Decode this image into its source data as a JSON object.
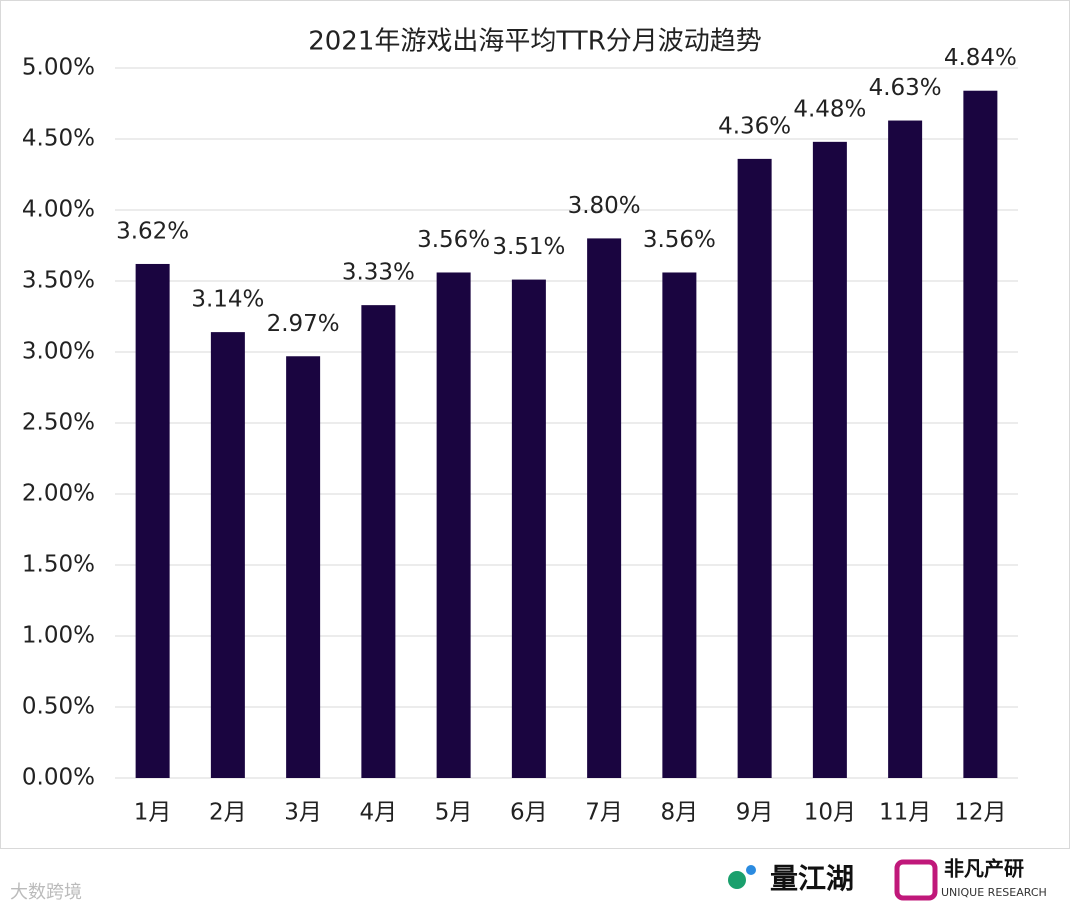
{
  "chart_data": {
    "type": "bar",
    "title": "2021年游戏出海平均TTR分月波动趋势",
    "categories": [
      "1月",
      "2月",
      "3月",
      "4月",
      "5月",
      "6月",
      "7月",
      "8月",
      "9月",
      "10月",
      "11月",
      "12月"
    ],
    "values": [
      3.62,
      3.14,
      2.97,
      3.33,
      3.56,
      3.51,
      3.8,
      3.56,
      4.36,
      4.48,
      4.63,
      4.84
    ],
    "value_labels": [
      "3.62%",
      "3.14%",
      "2.97%",
      "3.33%",
      "3.56%",
      "3.51%",
      "3.80%",
      "3.56%",
      "4.36%",
      "4.48%",
      "4.63%",
      "4.84%"
    ],
    "color": "#1a0540",
    "ylim": [
      0,
      5
    ],
    "yticks": [
      {
        "value": 0,
        "label": "0.00%"
      },
      {
        "value": 0.5,
        "label": "0.50%"
      },
      {
        "value": 1,
        "label": "1.00%"
      },
      {
        "value": 1.5,
        "label": "1.50%"
      },
      {
        "value": 2,
        "label": "2.00%"
      },
      {
        "value": 2.5,
        "label": "2.50%"
      },
      {
        "value": 3,
        "label": "3.00%"
      },
      {
        "value": 3.5,
        "label": "3.50%"
      },
      {
        "value": 4,
        "label": "4.00%"
      },
      {
        "value": 4.5,
        "label": "4.50%"
      },
      {
        "value": 5,
        "label": "5.00%"
      }
    ],
    "grid": true
  },
  "footer": {
    "logo_left": "量江湖",
    "logo_right": "非凡产研",
    "logo_right_sub": "UNIQUE RESEARCH",
    "watermark": "大数跨境"
  }
}
